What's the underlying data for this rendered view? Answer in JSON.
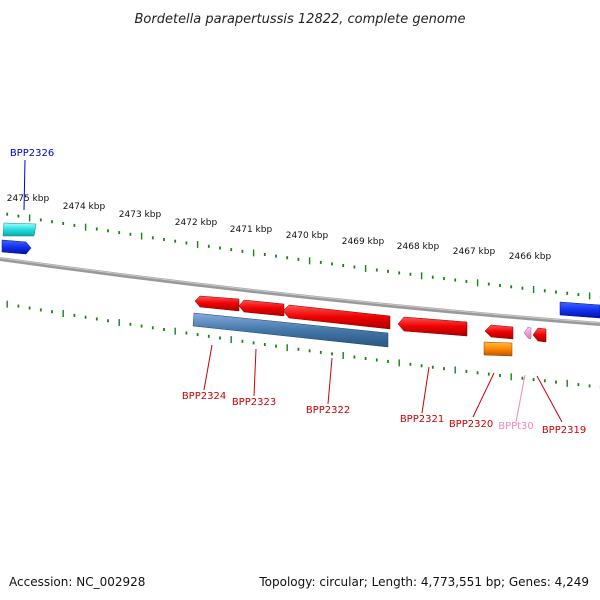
{
  "title": "Bordetella parapertussis 12822, complete genome",
  "footer": {
    "accession": "Accession: NC_002928",
    "summary": "Topology: circular; Length: 4,773,551 bp; Genes: 4,249"
  },
  "ruler_labels": [
    "2475 kbp",
    "2474 kbp",
    "2473 kbp",
    "2472 kbp",
    "2471 kbp",
    "2470 kbp",
    "2469 kbp",
    "2468 kbp",
    "2467 kbp",
    "2466 kbp"
  ],
  "genes": [
    {
      "id": "g-bpp2326",
      "label": "BPP2326",
      "color": "#0000cc"
    },
    {
      "id": "g-bpp2324",
      "label": "BPP2324",
      "color": "#cc0000"
    },
    {
      "id": "g-bpp2323",
      "label": "BPP2323",
      "color": "#cc0000"
    },
    {
      "id": "g-bpp2322",
      "label": "BPP2322",
      "color": "#cc0000"
    },
    {
      "id": "g-bpp2321",
      "label": "BPP2321",
      "color": "#cc0000"
    },
    {
      "id": "g-bpp2320",
      "label": "BPP2320",
      "color": "#cc0000"
    },
    {
      "id": "g-bppt30",
      "label": "BPPt30",
      "color": "#ee88bb"
    },
    {
      "id": "g-bpp2319",
      "label": "BPP2319",
      "color": "#cc0000"
    }
  ],
  "colors": {
    "forward_gene": "#ee1111",
    "reverse_gene": "#2244dd",
    "cds_blue": "#4477aa",
    "orange": "#ff8800",
    "cyan": "#22dddd",
    "tick_green": "#118811",
    "backbone": "#888888"
  }
}
